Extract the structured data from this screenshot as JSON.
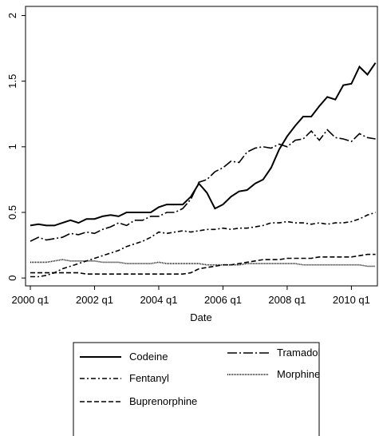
{
  "chart_data": {
    "type": "line",
    "x_label": "Date",
    "categories": [
      "2000 q1",
      null,
      null,
      null,
      null,
      null,
      null,
      null,
      "2002 q1",
      null,
      null,
      null,
      null,
      null,
      null,
      null,
      "2004 q1",
      null,
      null,
      null,
      null,
      null,
      null,
      null,
      "2006 q1",
      null,
      null,
      null,
      null,
      null,
      null,
      null,
      "2008 q1",
      null,
      null,
      null,
      null,
      null,
      null,
      null,
      "2010 q1",
      null,
      null,
      null
    ],
    "ylim": [
      -0.06,
      2.07
    ],
    "yticks": [
      0,
      0.5,
      1,
      1.5,
      2
    ],
    "legend": "bottom",
    "series": [
      {
        "name": "Codeine",
        "color": "#000000",
        "dash": "none",
        "values": [
          0.4,
          0.41,
          0.4,
          0.4,
          0.42,
          0.44,
          0.42,
          0.45,
          0.45,
          0.47,
          0.48,
          0.47,
          0.5,
          0.5,
          0.5,
          0.5,
          0.54,
          0.56,
          0.56,
          0.56,
          0.62,
          0.72,
          0.65,
          0.53,
          0.56,
          0.62,
          0.66,
          0.67,
          0.72,
          0.75,
          0.84,
          0.98,
          1.08,
          1.16,
          1.23,
          1.23,
          1.31,
          1.38,
          1.36,
          1.47,
          1.48,
          1.61,
          1.55,
          1.64
        ]
      },
      {
        "name": "Tramadol",
        "color": "#000000",
        "dash": "12,3,2,3",
        "values": [
          0.28,
          0.31,
          0.29,
          0.3,
          0.31,
          0.34,
          0.33,
          0.35,
          0.34,
          0.37,
          0.39,
          0.42,
          0.4,
          0.44,
          0.44,
          0.47,
          0.47,
          0.5,
          0.5,
          0.53,
          0.6,
          0.73,
          0.75,
          0.81,
          0.84,
          0.89,
          0.88,
          0.96,
          0.99,
          1.0,
          0.99,
          1.02,
          1.0,
          1.05,
          1.06,
          1.12,
          1.05,
          1.13,
          1.07,
          1.06,
          1.04,
          1.1,
          1.07,
          1.06
        ]
      },
      {
        "name": "Fentanyl",
        "color": "#000000",
        "dash": "6,3,2,3",
        "values": [
          0.01,
          0.01,
          0.02,
          0.04,
          0.07,
          0.09,
          0.11,
          0.13,
          0.15,
          0.17,
          0.19,
          0.21,
          0.24,
          0.26,
          0.28,
          0.31,
          0.35,
          0.34,
          0.35,
          0.36,
          0.35,
          0.36,
          0.37,
          0.37,
          0.38,
          0.37,
          0.38,
          0.38,
          0.39,
          0.4,
          0.42,
          0.42,
          0.43,
          0.42,
          0.42,
          0.41,
          0.42,
          0.41,
          0.42,
          0.42,
          0.43,
          0.45,
          0.48,
          0.5
        ]
      },
      {
        "name": "Morphine",
        "color": "#000000",
        "dash": "1,1",
        "values": [
          0.12,
          0.12,
          0.12,
          0.13,
          0.14,
          0.13,
          0.13,
          0.13,
          0.13,
          0.12,
          0.12,
          0.12,
          0.11,
          0.11,
          0.11,
          0.11,
          0.12,
          0.11,
          0.11,
          0.11,
          0.11,
          0.11,
          0.1,
          0.1,
          0.1,
          0.1,
          0.1,
          0.11,
          0.11,
          0.11,
          0.11,
          0.11,
          0.11,
          0.11,
          0.1,
          0.1,
          0.1,
          0.1,
          0.1,
          0.1,
          0.1,
          0.1,
          0.09,
          0.09
        ]
      },
      {
        "name": "Buprenorphine",
        "color": "#000000",
        "dash": "6,3",
        "values": [
          0.04,
          0.04,
          0.04,
          0.04,
          0.04,
          0.04,
          0.04,
          0.03,
          0.03,
          0.03,
          0.03,
          0.03,
          0.03,
          0.03,
          0.03,
          0.03,
          0.03,
          0.03,
          0.03,
          0.03,
          0.04,
          0.07,
          0.08,
          0.09,
          0.1,
          0.1,
          0.11,
          0.12,
          0.13,
          0.14,
          0.14,
          0.14,
          0.15,
          0.15,
          0.15,
          0.15,
          0.16,
          0.16,
          0.16,
          0.16,
          0.16,
          0.17,
          0.18,
          0.18
        ]
      }
    ]
  }
}
